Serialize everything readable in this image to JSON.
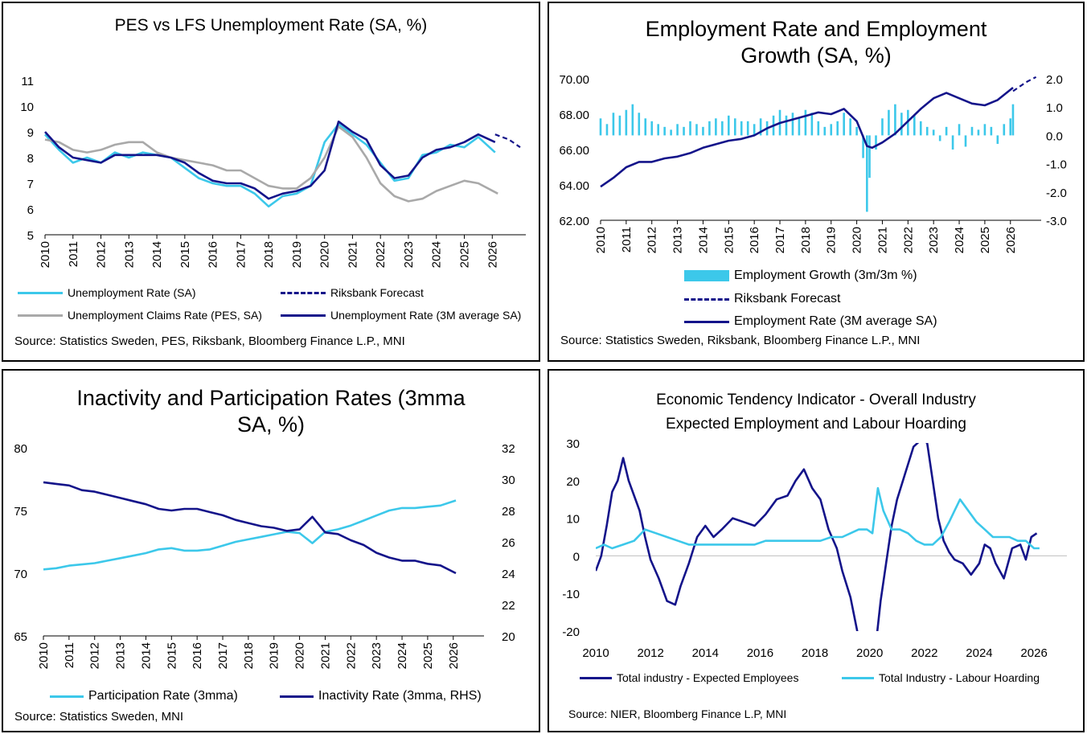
{
  "panels": {
    "p1": {
      "title": "PES vs LFS Unemployment Rate (SA, %)",
      "legend": [
        "Unemployment Rate (SA)",
        "Riksbank Forecast",
        "Unemployment Claims Rate (PES, SA)",
        "Unemployment Rate (3M average  SA)"
      ],
      "source": "Source: Statistics Sweden, PES, Riksbank, Bloomberg Finance L.P., MNI"
    },
    "p2": {
      "title": "Employment Rate and Employment\nGrowth (SA, %)",
      "legend": [
        "Employment Growth (3m/3m %)",
        "Riksbank Forecast",
        "Employment Rate (3M average SA)"
      ],
      "source": "Source: Statistics Sweden, Riksbank, Bloomberg Finance L.P., MNI"
    },
    "p3": {
      "title": "Inactivity and Participation Rates (3mma\nSA, %)",
      "legend": [
        "Participation Rate (3mma)",
        "Inactivity Rate (3mma, RHS)"
      ],
      "source": "Source: Statistics Sweden, MNI"
    },
    "p4": {
      "title": "Economic Tendency Indicator - Overall Industry\nExpected Employment and Labour Hoarding",
      "legend": [
        "Total industry - Expected Employees",
        "Total Industry - Labour Hoarding"
      ],
      "source": "Source: NIER, Bloomberg Finance L.P, MNI"
    }
  },
  "colors": {
    "light": "#3cc8ea",
    "dark": "#14148a",
    "grey": "#a9a9a9"
  },
  "chart_data": [
    {
      "type": "line",
      "title": "PES vs LFS Unemployment Rate (SA, %)",
      "xticks": [
        "2010",
        "2011",
        "2012",
        "2013",
        "2014",
        "2015",
        "2016",
        "2017",
        "2018",
        "2019",
        "2020",
        "2021",
        "2022",
        "2023",
        "2024",
        "2025",
        "2026"
      ],
      "yticks": [
        "5",
        "6",
        "7",
        "8",
        "9",
        "10",
        "11"
      ],
      "ylim": [
        5,
        11
      ],
      "xlim": [
        2010,
        2027.2
      ],
      "series": [
        {
          "name": "Unemployment Rate (SA)",
          "style": "light",
          "x": [
            2010,
            2010.5,
            2011,
            2011.5,
            2012,
            2012.5,
            2013,
            2013.5,
            2014,
            2014.5,
            2015,
            2015.5,
            2016,
            2016.5,
            2017,
            2017.5,
            2018,
            2018.5,
            2019,
            2019.5,
            2020,
            2020.5,
            2021,
            2021.5,
            2022,
            2022.5,
            2023,
            2023.5,
            2024,
            2024.5,
            2025,
            2025.5,
            2026.1
          ],
          "y": [
            8.9,
            8.3,
            7.8,
            8.0,
            7.8,
            8.2,
            8.0,
            8.2,
            8.1,
            8.0,
            7.6,
            7.2,
            7.0,
            6.9,
            6.9,
            6.6,
            6.1,
            6.5,
            6.6,
            6.9,
            8.6,
            9.3,
            8.9,
            8.5,
            7.8,
            7.1,
            7.2,
            8.1,
            8.2,
            8.5,
            8.4,
            8.8,
            8.2
          ]
        },
        {
          "name": "Unemployment Claims Rate (PES, SA)",
          "style": "grey",
          "x": [
            2010,
            2010.5,
            2011,
            2011.5,
            2012,
            2012.5,
            2013,
            2013.5,
            2014,
            2014.5,
            2015,
            2015.5,
            2016,
            2016.5,
            2017,
            2017.5,
            2018,
            2018.5,
            2019,
            2019.5,
            2020,
            2020.5,
            2021,
            2021.5,
            2022,
            2022.5,
            2023,
            2023.5,
            2024,
            2024.5,
            2025,
            2025.5,
            2026.2
          ],
          "y": [
            8.7,
            8.6,
            8.3,
            8.2,
            8.3,
            8.5,
            8.6,
            8.6,
            8.2,
            8.0,
            7.9,
            7.8,
            7.7,
            7.5,
            7.5,
            7.2,
            6.9,
            6.8,
            6.8,
            7.2,
            8.0,
            9.2,
            8.8,
            8.0,
            7.0,
            6.5,
            6.3,
            6.4,
            6.7,
            6.9,
            7.1,
            7.0,
            6.6
          ]
        },
        {
          "name": "Unemployment Rate (3M average  SA)",
          "style": "dark",
          "x": [
            2010,
            2010.5,
            2011,
            2011.5,
            2012,
            2012.5,
            2013,
            2013.5,
            2014,
            2014.5,
            2015,
            2015.5,
            2016,
            2016.5,
            2017,
            2017.5,
            2018,
            2018.5,
            2019,
            2019.5,
            2020,
            2020.5,
            2021,
            2021.5,
            2022,
            2022.5,
            2023,
            2023.5,
            2024,
            2024.5,
            2025,
            2025.5,
            2026.1
          ],
          "y": [
            9.0,
            8.4,
            8.0,
            7.9,
            7.8,
            8.1,
            8.1,
            8.1,
            8.1,
            8.0,
            7.8,
            7.4,
            7.1,
            7.0,
            7.0,
            6.8,
            6.4,
            6.6,
            6.7,
            6.9,
            7.5,
            9.4,
            9.0,
            8.7,
            7.7,
            7.2,
            7.3,
            8.0,
            8.3,
            8.4,
            8.6,
            8.9,
            8.6
          ]
        },
        {
          "name": "Riksbank Forecast",
          "style": "dark-dash",
          "x": [
            2026.1,
            2026.6,
            2027.0
          ],
          "y": [
            8.9,
            8.7,
            8.4
          ]
        }
      ]
    },
    {
      "type": "line",
      "title": "Employment Rate and Employment Growth (SA, %)",
      "xticks": [
        "2010",
        "2011",
        "2012",
        "2013",
        "2014",
        "2015",
        "2016",
        "2017",
        "2018",
        "2019",
        "2020",
        "2021",
        "2022",
        "2023",
        "2024",
        "2025",
        "2026"
      ],
      "yticks_left": [
        "62.00",
        "64.00",
        "66.00",
        "68.00",
        "70.00"
      ],
      "yticks_right": [
        "-3.0",
        "-2.0",
        "-1.0",
        "0.0",
        "1.0",
        "2.0"
      ],
      "ylim_left": [
        62,
        70
      ],
      "ylim_right": [
        -3,
        2
      ],
      "xlim": [
        2010,
        2027.2
      ],
      "bars": {
        "name": "Employment Growth (3m/3m %)",
        "x": [
          2010.0,
          2010.25,
          2010.5,
          2010.75,
          2011.0,
          2011.25,
          2011.5,
          2011.75,
          2012.0,
          2012.25,
          2012.5,
          2012.75,
          2013.0,
          2013.25,
          2013.5,
          2013.75,
          2014.0,
          2014.25,
          2014.5,
          2014.75,
          2015.0,
          2015.25,
          2015.5,
          2015.75,
          2016.0,
          2016.25,
          2016.5,
          2016.75,
          2017.0,
          2017.25,
          2017.5,
          2017.75,
          2018.0,
          2018.25,
          2018.5,
          2018.75,
          2019.0,
          2019.25,
          2019.5,
          2019.75,
          2020.0,
          2020.25,
          2020.4,
          2020.5,
          2020.75,
          2021.0,
          2021.25,
          2021.5,
          2021.75,
          2022.0,
          2022.25,
          2022.5,
          2022.75,
          2023.0,
          2023.25,
          2023.5,
          2023.75,
          2024.0,
          2024.25,
          2024.5,
          2024.75,
          2025.0,
          2025.25,
          2025.5,
          2025.75,
          2026.0,
          2026.1
        ],
        "y": [
          0.6,
          0.4,
          0.8,
          0.7,
          0.9,
          1.1,
          0.8,
          0.6,
          0.5,
          0.4,
          0.3,
          0.2,
          0.4,
          0.3,
          0.5,
          0.4,
          0.3,
          0.5,
          0.6,
          0.5,
          0.7,
          0.6,
          0.5,
          0.5,
          0.4,
          0.6,
          0.5,
          0.7,
          0.9,
          0.7,
          0.8,
          0.6,
          0.9,
          0.8,
          0.5,
          0.3,
          0.4,
          0.5,
          0.8,
          0.6,
          0.3,
          -0.8,
          -2.7,
          -1.5,
          -0.5,
          0.6,
          0.9,
          1.1,
          0.8,
          0.9,
          0.7,
          0.5,
          0.3,
          0.2,
          -0.2,
          0.3,
          -0.5,
          0.4,
          -0.4,
          0.3,
          0.2,
          0.4,
          0.3,
          -0.3,
          0.4,
          0.6,
          1.1
        ]
      },
      "series": [
        {
          "name": "Employment Rate (3M average SA)",
          "style": "dark",
          "x": [
            2010,
            2010.5,
            2011,
            2011.5,
            2012,
            2012.5,
            2013,
            2013.5,
            2014,
            2014.5,
            2015,
            2015.5,
            2016,
            2016.5,
            2017,
            2017.5,
            2018,
            2018.5,
            2019,
            2019.5,
            2020,
            2020.4,
            2020.6,
            2021,
            2021.5,
            2022,
            2022.5,
            2023,
            2023.5,
            2024,
            2024.5,
            2025,
            2025.5,
            2026.1
          ],
          "y": [
            63.9,
            64.4,
            65.0,
            65.3,
            65.3,
            65.5,
            65.6,
            65.8,
            66.1,
            66.3,
            66.5,
            66.6,
            66.8,
            67.2,
            67.5,
            67.7,
            67.9,
            68.1,
            68.0,
            68.3,
            67.6,
            66.2,
            66.1,
            66.4,
            66.9,
            67.6,
            68.3,
            68.9,
            69.2,
            68.9,
            68.6,
            68.5,
            68.8,
            69.5
          ]
        },
        {
          "name": "Riksbank Forecast",
          "style": "dark-dash",
          "x": [
            2026.1,
            2026.6,
            2027.0
          ],
          "y": [
            69.3,
            69.8,
            70.1
          ]
        }
      ]
    },
    {
      "type": "line",
      "title": "Inactivity and Participation Rates (3mma SA, %)",
      "xticks": [
        "2010",
        "2011",
        "2012",
        "2013",
        "2014",
        "2015",
        "2016",
        "2017",
        "2018",
        "2019",
        "2020",
        "2021",
        "2022",
        "2023",
        "2024",
        "2025",
        "2026"
      ],
      "yticks_left": [
        "65",
        "70",
        "75",
        "80"
      ],
      "yticks_right": [
        "20",
        "22",
        "24",
        "26",
        "28",
        "30",
        "32"
      ],
      "ylim_left": [
        65,
        80
      ],
      "ylim_right": [
        20,
        32
      ],
      "xlim": [
        2010,
        2027.2
      ],
      "series": [
        {
          "name": "Participation Rate (3mma)",
          "style": "light",
          "axis": "left",
          "x": [
            2010,
            2010.5,
            2011,
            2011.5,
            2012,
            2012.5,
            2013,
            2013.5,
            2014,
            2014.5,
            2015,
            2015.5,
            2016,
            2016.5,
            2017,
            2017.5,
            2018,
            2018.5,
            2019,
            2019.5,
            2020,
            2020.5,
            2021,
            2021.5,
            2022,
            2022.5,
            2023,
            2023.5,
            2024,
            2024.5,
            2025,
            2025.5,
            2026.1
          ],
          "y": [
            70.3,
            70.4,
            70.6,
            70.7,
            70.8,
            71.0,
            71.2,
            71.4,
            71.6,
            71.9,
            72.0,
            71.8,
            71.8,
            71.9,
            72.2,
            72.5,
            72.7,
            72.9,
            73.1,
            73.3,
            73.2,
            72.4,
            73.3,
            73.5,
            73.8,
            74.2,
            74.6,
            75.0,
            75.2,
            75.2,
            75.3,
            75.4,
            75.8
          ]
        },
        {
          "name": "Inactivity Rate (3mma, RHS)",
          "style": "dark",
          "axis": "right",
          "x": [
            2010,
            2010.5,
            2011,
            2011.5,
            2012,
            2012.5,
            2013,
            2013.5,
            2014,
            2014.5,
            2015,
            2015.5,
            2016,
            2016.5,
            2017,
            2017.5,
            2018,
            2018.5,
            2019,
            2019.5,
            2020,
            2020.5,
            2021,
            2021.5,
            2022,
            2022.5,
            2023,
            2023.5,
            2024,
            2024.5,
            2025,
            2025.5,
            2026.1
          ],
          "y": [
            29.8,
            29.7,
            29.6,
            29.3,
            29.2,
            29.0,
            28.8,
            28.6,
            28.4,
            28.1,
            28.0,
            28.1,
            28.1,
            27.9,
            27.7,
            27.4,
            27.2,
            27.0,
            26.9,
            26.7,
            26.8,
            27.6,
            26.6,
            26.5,
            26.1,
            25.8,
            25.3,
            25.0,
            24.8,
            24.8,
            24.6,
            24.5,
            24.0
          ]
        }
      ]
    },
    {
      "type": "line",
      "title": "Economic Tendency Indicator - Overall Industry Expected Employment and Labour Hoarding",
      "xticks": [
        "2010",
        "2012",
        "2014",
        "2016",
        "2018",
        "2020",
        "2022",
        "2024",
        "2026"
      ],
      "yticks": [
        "-20",
        "-10",
        "0",
        "10",
        "20",
        "30"
      ],
      "ylim": [
        -20,
        30
      ],
      "xlim": [
        2010,
        2027.2
      ],
      "series": [
        {
          "name": "Total industry - Expected Employees",
          "style": "dark",
          "x": [
            2010,
            2010.2,
            2010.4,
            2010.6,
            2010.8,
            2011.0,
            2011.2,
            2011.4,
            2011.6,
            2011.8,
            2012.0,
            2012.3,
            2012.6,
            2012.9,
            2013.1,
            2013.4,
            2013.7,
            2014.0,
            2014.3,
            2014.6,
            2015.0,
            2015.4,
            2015.8,
            2016.2,
            2016.6,
            2017.0,
            2017.3,
            2017.6,
            2017.9,
            2018.2,
            2018.5,
            2018.8,
            2019.0,
            2019.3,
            2019.6,
            2019.9,
            2020.1,
            2020.25,
            2020.4,
            2020.6,
            2020.8,
            2021.0,
            2021.3,
            2021.6,
            2021.9,
            2022.1,
            2022.3,
            2022.5,
            2022.7,
            2022.9,
            2023.1,
            2023.4,
            2023.7,
            2024.0,
            2024.2,
            2024.4,
            2024.6,
            2024.9,
            2025.2,
            2025.5,
            2025.7,
            2025.9,
            2026.1
          ],
          "y": [
            -4,
            0,
            8,
            17,
            20,
            26,
            20,
            16,
            12,
            5,
            -1,
            -6,
            -12,
            -13,
            -8,
            -2,
            5,
            8,
            5,
            7,
            10,
            9,
            8,
            11,
            15,
            16,
            20,
            23,
            18,
            15,
            7,
            2,
            -4,
            -11,
            -22,
            -28,
            -29,
            -22,
            -12,
            -2,
            8,
            15,
            22,
            29,
            31,
            30,
            20,
            10,
            4,
            1,
            -1,
            -2,
            -5,
            -2,
            3,
            2,
            -2,
            -6,
            2,
            3,
            -1,
            5,
            6
          ]
        },
        {
          "name": "Total Industry - Labour Hoarding",
          "style": "light",
          "x": [
            2010,
            2010.3,
            2010.6,
            2011.0,
            2011.4,
            2011.8,
            2012.2,
            2012.6,
            2013.0,
            2013.4,
            2013.8,
            2014.2,
            2014.6,
            2015.0,
            2015.4,
            2015.8,
            2016.2,
            2016.6,
            2017.0,
            2017.4,
            2017.8,
            2018.2,
            2018.6,
            2019.0,
            2019.3,
            2019.6,
            2019.9,
            2020.1,
            2020.3,
            2020.5,
            2020.8,
            2021.1,
            2021.4,
            2021.7,
            2022.0,
            2022.3,
            2022.6,
            2022.9,
            2023.1,
            2023.3,
            2023.6,
            2023.9,
            2024.2,
            2024.5,
            2024.8,
            2025.1,
            2025.4,
            2025.7,
            2026.0,
            2026.2
          ],
          "y": [
            2,
            3,
            2,
            3,
            4,
            7,
            6,
            5,
            4,
            3,
            3,
            3,
            3,
            3,
            3,
            3,
            4,
            4,
            4,
            4,
            4,
            4,
            5,
            5,
            6,
            7,
            7,
            6,
            18,
            12,
            7,
            7,
            6,
            4,
            3,
            3,
            5,
            9,
            12,
            15,
            12,
            9,
            7,
            5,
            5,
            5,
            4,
            4,
            2,
            2
          ]
        }
      ]
    }
  ]
}
